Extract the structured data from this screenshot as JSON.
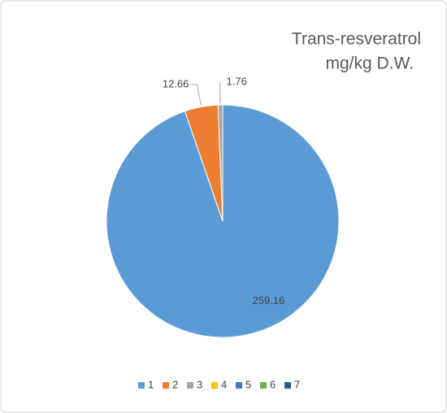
{
  "chart_data": {
    "type": "pie",
    "title": [
      "Trans-resveratrol",
      "mg/kg D.W."
    ],
    "categories": [
      "1",
      "2",
      "3",
      "4",
      "5",
      "6",
      "7"
    ],
    "values": [
      259.16,
      12.66,
      1.76,
      0,
      0,
      0,
      0
    ],
    "colors": [
      "#5b9bd5",
      "#ed7d31",
      "#a5a5a5",
      "#ffc000",
      "#4472c4",
      "#70ad47",
      "#255e91"
    ],
    "legend": "bottom"
  }
}
